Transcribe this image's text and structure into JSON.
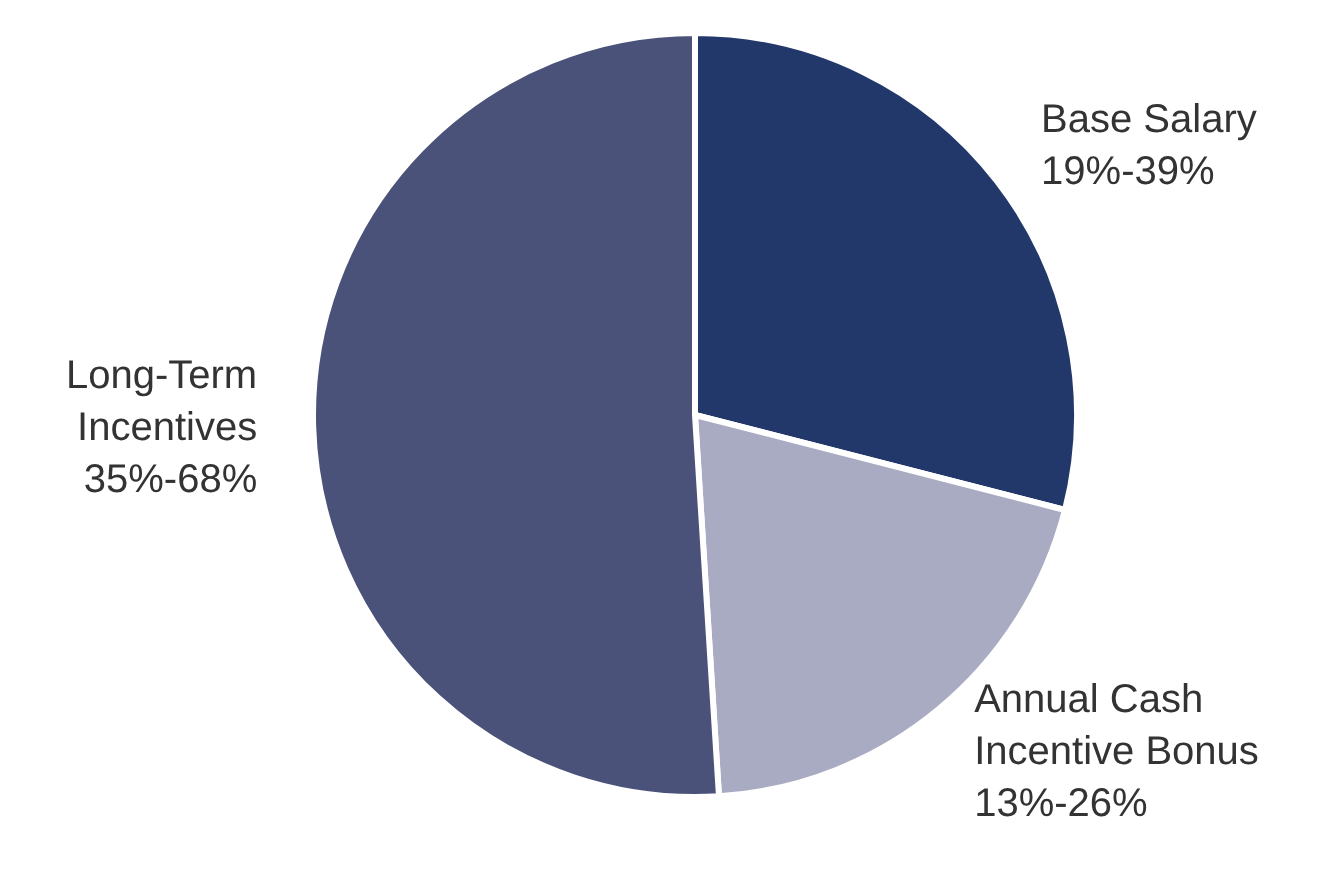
{
  "chart_data": {
    "type": "pie",
    "categories": [
      "Base Salary",
      "Annual Cash Incentive Bonus",
      "Long-Term Incentives"
    ],
    "values": [
      29,
      20,
      51
    ],
    "annotations": [
      "19%-39%",
      "13%-26%",
      "35%-68%"
    ],
    "colors": [
      "#22376a",
      "#a9abc3",
      "#4a5279"
    ],
    "legend": false
  }
}
